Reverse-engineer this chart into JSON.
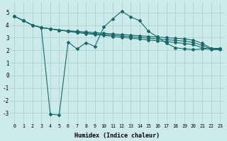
{
  "bg_color": "#cceaea",
  "grid_color": "#aad4d4",
  "line_color": "#1a6868",
  "xlabel": "Humidex (Indice chaleur)",
  "xlim": [
    -0.5,
    23.5
  ],
  "ylim": [
    -3.8,
    5.8
  ],
  "yticks": [
    -3,
    -2,
    -1,
    0,
    1,
    2,
    3,
    4,
    5
  ],
  "xticks": [
    0,
    1,
    2,
    3,
    4,
    5,
    6,
    7,
    8,
    9,
    10,
    11,
    12,
    13,
    14,
    15,
    16,
    17,
    18,
    19,
    20,
    21,
    22,
    23
  ],
  "line1_x": [
    0,
    1,
    2,
    3,
    4,
    5,
    6,
    7,
    8,
    9,
    10,
    11,
    12,
    13,
    14,
    15,
    16,
    17,
    18,
    19,
    20,
    21,
    22,
    23
  ],
  "line1_y": [
    4.7,
    4.35,
    4.0,
    3.8,
    3.7,
    3.6,
    3.55,
    3.5,
    3.45,
    3.4,
    3.35,
    3.3,
    3.25,
    3.2,
    3.15,
    3.1,
    3.05,
    3.0,
    2.95,
    2.9,
    2.8,
    2.55,
    2.15,
    2.15
  ],
  "line2_x": [
    0,
    1,
    2,
    3,
    4,
    5,
    6,
    7,
    8,
    9,
    10,
    11,
    12,
    13,
    14,
    15,
    16,
    17,
    18,
    19,
    20,
    21,
    22,
    23
  ],
  "line2_y": [
    4.7,
    4.35,
    4.0,
    3.8,
    3.7,
    3.6,
    3.52,
    3.44,
    3.38,
    3.32,
    3.26,
    3.2,
    3.14,
    3.08,
    3.02,
    2.96,
    2.9,
    2.84,
    2.78,
    2.72,
    2.62,
    2.38,
    2.1,
    2.1
  ],
  "line3_x": [
    0,
    1,
    2,
    3,
    4,
    5,
    6,
    7,
    8,
    9,
    10,
    11,
    12,
    13,
    14,
    15,
    16,
    17,
    18,
    19,
    20,
    21,
    22,
    23
  ],
  "line3_y": [
    4.7,
    4.35,
    4.0,
    3.8,
    3.7,
    3.6,
    3.5,
    3.4,
    3.32,
    3.25,
    3.18,
    3.1,
    3.03,
    2.96,
    2.89,
    2.82,
    2.75,
    2.68,
    2.61,
    2.54,
    2.44,
    2.2,
    2.05,
    2.05
  ],
  "dip_x": [
    3,
    4,
    5,
    6,
    7,
    8,
    9,
    10,
    11,
    12,
    13,
    14,
    15,
    16,
    17,
    18,
    19,
    20,
    21,
    22,
    23
  ],
  "dip_y": [
    3.8,
    -3.1,
    -3.15,
    2.65,
    2.1,
    2.6,
    2.3,
    3.85,
    4.5,
    5.1,
    4.65,
    4.35,
    3.5,
    3.05,
    2.55,
    2.2,
    2.1,
    2.05,
    2.1,
    2.1,
    2.1
  ],
  "linewidth": 0.8,
  "markersize": 2.0
}
